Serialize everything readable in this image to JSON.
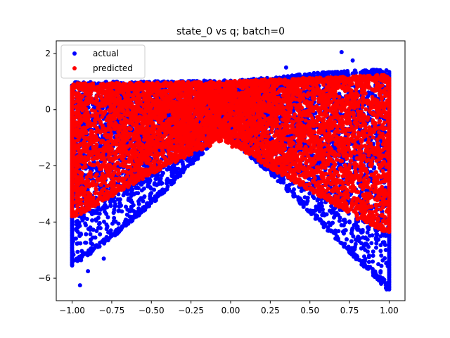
{
  "chart_data": {
    "type": "scatter",
    "title": "state_0 vs q; batch=0",
    "xlabel": "",
    "ylabel": "",
    "xlim": [
      -1.1,
      1.1
    ],
    "ylim": [
      -6.8,
      2.45
    ],
    "xticks": [
      -1.0,
      -0.75,
      -0.5,
      -0.25,
      0.0,
      0.25,
      0.5,
      0.75,
      1.0
    ],
    "xtick_labels": [
      "−1.00",
      "−0.75",
      "−0.50",
      "−0.25",
      "0.00",
      "0.25",
      "0.50",
      "0.75",
      "1.00"
    ],
    "yticks": [
      2,
      0,
      -2,
      -4,
      -6
    ],
    "ytick_labels": [
      "2",
      "0",
      "−2",
      "−4",
      "−6"
    ],
    "legend_position": "upper-left",
    "grid": false,
    "series": [
      {
        "name": "actual",
        "color": "#0000ff",
        "marker": "circle",
        "envelope": {
          "x": [
            -1.0,
            -0.75,
            -0.5,
            -0.25,
            -0.05,
            0.0,
            0.25,
            0.5,
            0.75,
            1.0
          ],
          "upper": [
            0.88,
            0.9,
            0.92,
            0.94,
            0.95,
            0.96,
            1.05,
            1.2,
            1.3,
            1.35
          ],
          "lower": [
            -5.5,
            -4.5,
            -3.3,
            -1.9,
            -0.8,
            -1.0,
            -2.2,
            -3.6,
            -5.0,
            -6.4
          ]
        },
        "outliers": [
          {
            "x": -0.95,
            "y": -6.25
          },
          {
            "x": -0.9,
            "y": -5.75
          },
          {
            "x": -0.8,
            "y": -5.3
          },
          {
            "x": 0.35,
            "y": 1.5
          },
          {
            "x": 0.7,
            "y": 2.05
          },
          {
            "x": 0.77,
            "y": 1.75
          },
          {
            "x": 0.88,
            "y": -5.6
          },
          {
            "x": 0.98,
            "y": -6.35
          },
          {
            "x": 0.96,
            "y": -6.0
          }
        ]
      },
      {
        "name": "predicted",
        "color": "#ff0000",
        "marker": "circle",
        "envelope": {
          "x": [
            -1.0,
            -0.75,
            -0.5,
            -0.25,
            -0.05,
            0.0,
            0.25,
            0.5,
            0.75,
            1.0
          ],
          "upper": [
            0.85,
            0.86,
            0.88,
            0.9,
            0.92,
            0.93,
            1.0,
            1.05,
            1.1,
            1.15
          ],
          "lower": [
            -3.8,
            -3.0,
            -2.2,
            -1.5,
            -1.0,
            -1.15,
            -2.0,
            -2.8,
            -3.6,
            -4.35
          ]
        },
        "outliers": [
          {
            "x": 0.01,
            "y": -1.32
          },
          {
            "x": 0.8,
            "y": -3.9
          }
        ]
      }
    ]
  }
}
